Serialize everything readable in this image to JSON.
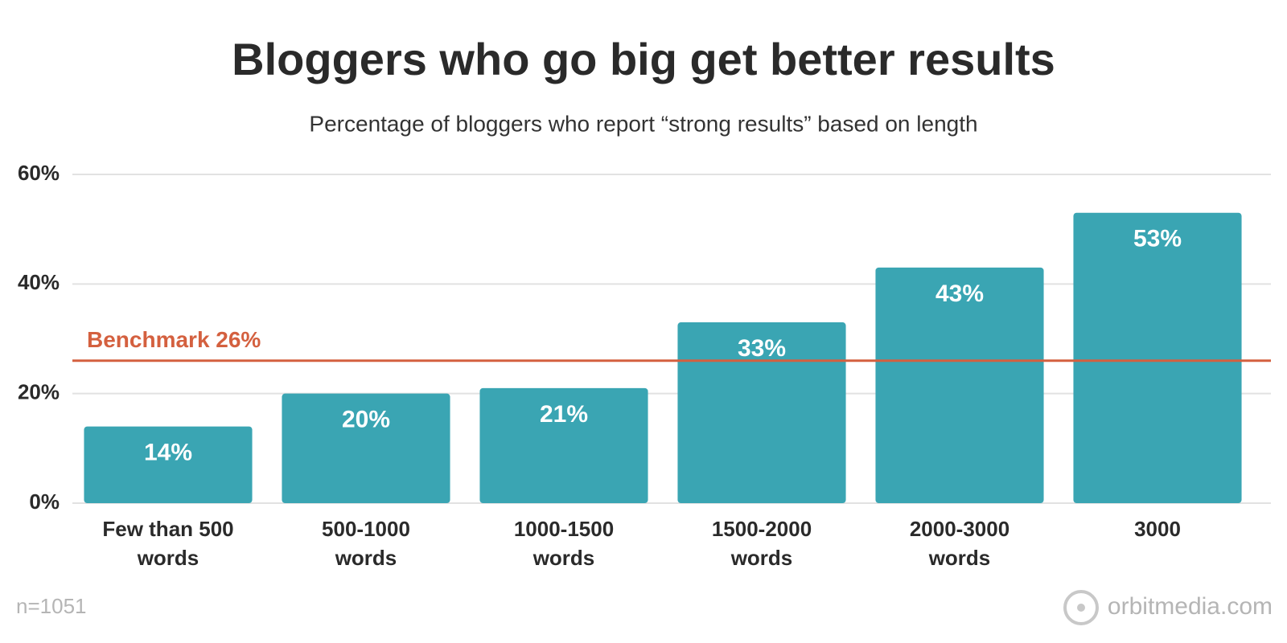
{
  "chart_data": {
    "type": "bar",
    "title": "Bloggers who go big get better results",
    "subtitle": "Percentage of bloggers who report “strong results” based on length",
    "categories": [
      "Few than 500 words",
      "500-1000 words",
      "1000-1500 words",
      "1500-2000 words",
      "2000-3000 words",
      "3000"
    ],
    "values": [
      14,
      20,
      21,
      33,
      43,
      53
    ],
    "value_labels": [
      "14%",
      "20%",
      "21%",
      "33%",
      "43%",
      "53%"
    ],
    "color": "#3aa5b3",
    "ylim": [
      0,
      60
    ],
    "yticks": [
      {
        "value": 0,
        "label": "0%"
      },
      {
        "value": 20,
        "label": "20%"
      },
      {
        "value": 40,
        "label": "40%"
      },
      {
        "value": 60,
        "label": "60%"
      }
    ],
    "grid": true,
    "benchmark": {
      "label": "Benchmark 26%",
      "value": 26,
      "color": "#d4603f"
    },
    "footnote": "n=1051",
    "source": "orbitmedia.com"
  }
}
